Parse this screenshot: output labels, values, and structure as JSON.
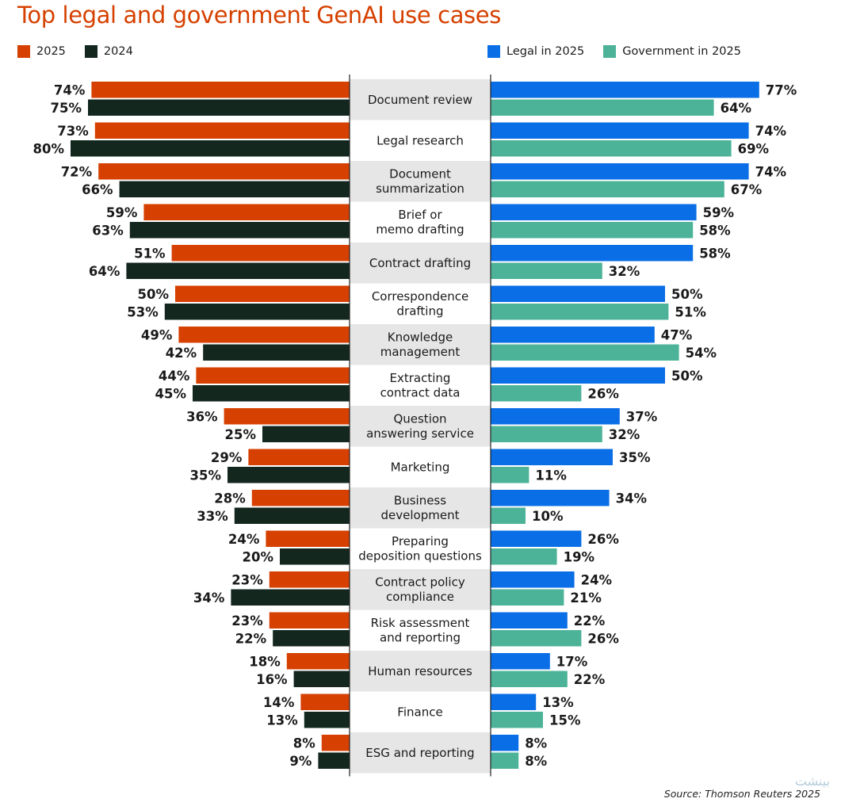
{
  "title": "Top legal and government GenAI use cases",
  "legend_left": [
    {
      "label": "2025",
      "color": "#d64000"
    },
    {
      "label": "2024",
      "color": "#13271f"
    }
  ],
  "legend_right": [
    {
      "label": "Legal in 2025",
      "color": "#0a6ee6"
    },
    {
      "label": "Government in 2025",
      "color": "#4cb398"
    }
  ],
  "source": "Source: Thomson Reuters 2025",
  "watermark": "بینشت",
  "colors": {
    "label_band": "#e6e6e6",
    "axis_line": "#222222"
  },
  "chart_data": {
    "type": "bar",
    "orientation": "horizontal-butterfly",
    "categories": [
      [
        "Document review"
      ],
      [
        "Legal research"
      ],
      [
        "Document",
        "summarization"
      ],
      [
        "Brief or",
        "memo drafting"
      ],
      [
        "Contract drafting"
      ],
      [
        "Correspondence",
        "drafting"
      ],
      [
        "Knowledge",
        "management"
      ],
      [
        "Extracting",
        "contract data"
      ],
      [
        "Question",
        "answering service"
      ],
      [
        "Marketing"
      ],
      [
        "Business",
        "development"
      ],
      [
        "Preparing",
        "deposition questions"
      ],
      [
        "Contract policy",
        "compliance"
      ],
      [
        "Risk assessment",
        "and reporting"
      ],
      [
        "Human resources"
      ],
      [
        "Finance"
      ],
      [
        "ESG and reporting"
      ]
    ],
    "left_series": [
      {
        "name": "2025",
        "values": [
          74,
          73,
          72,
          59,
          51,
          50,
          49,
          44,
          36,
          29,
          28,
          24,
          23,
          23,
          18,
          14,
          8
        ]
      },
      {
        "name": "2024",
        "values": [
          75,
          80,
          66,
          63,
          64,
          53,
          42,
          45,
          25,
          35,
          33,
          20,
          34,
          22,
          16,
          13,
          9
        ]
      }
    ],
    "right_series": [
      {
        "name": "Legal in 2025",
        "values": [
          77,
          74,
          74,
          59,
          58,
          50,
          47,
          50,
          37,
          35,
          34,
          26,
          24,
          22,
          17,
          13,
          8
        ]
      },
      {
        "name": "Government in 2025",
        "values": [
          64,
          69,
          67,
          58,
          32,
          51,
          54,
          26,
          32,
          11,
          10,
          19,
          21,
          26,
          22,
          15,
          8
        ]
      }
    ],
    "value_suffix": "%",
    "xlim": [
      0,
      80
    ]
  }
}
